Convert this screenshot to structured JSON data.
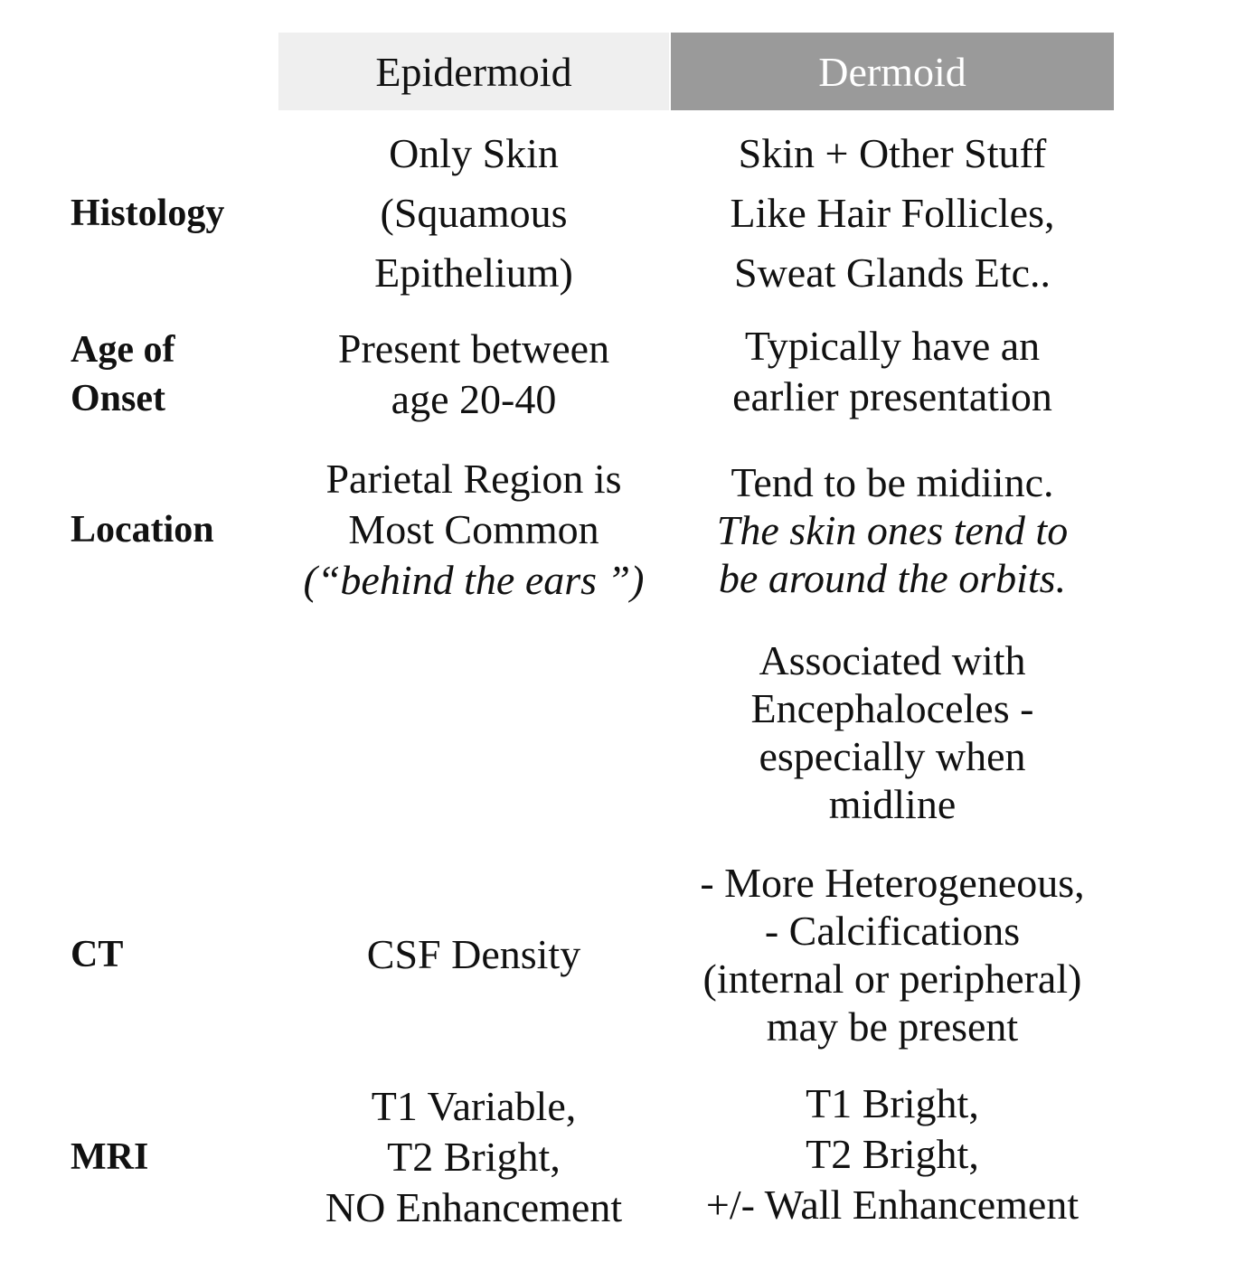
{
  "header": {
    "epidermoid": "Epidermoid",
    "dermoid": "Dermoid"
  },
  "rows": {
    "histology": {
      "label": "Histology",
      "epidermoid": [
        "Only Skin",
        "(Squamous",
        "Epithelium)"
      ],
      "dermoid": [
        "Skin + Other Stuff",
        "Like Hair Follicles,",
        "Sweat Glands Etc.."
      ]
    },
    "age": {
      "label_lines": [
        "Age of",
        "Onset"
      ],
      "epidermoid": [
        "Present between",
        "age 20-40"
      ],
      "dermoid": [
        "Typically have an",
        "earlier presentation"
      ]
    },
    "location": {
      "label": "Location",
      "epidermoid": [
        "Parietal Region is",
        "Most Common"
      ],
      "epidermoid_italic": "(“behind the ears ”)",
      "dermoid": [
        "Tend to be midiinc."
      ],
      "dermoid_italic": [
        "The skin ones tend to",
        "be around the orbits."
      ]
    },
    "association": {
      "dermoid": [
        "Associated with",
        "Encephaloceles -",
        "especially when",
        "midline"
      ]
    },
    "ct": {
      "label": "CT",
      "epidermoid": [
        "CSF Density"
      ],
      "dermoid": [
        "- More Heterogeneous,",
        "- Calcifications",
        "(internal or peripheral)",
        "may be present"
      ]
    },
    "mri": {
      "label": "MRI",
      "epidermoid": [
        "T1 Variable,",
        "T2 Bright,",
        "NO Enhancement"
      ],
      "dermoid": [
        "T1 Bright,",
        "T2 Bright,",
        "+/- Wall Enhancement"
      ]
    }
  }
}
